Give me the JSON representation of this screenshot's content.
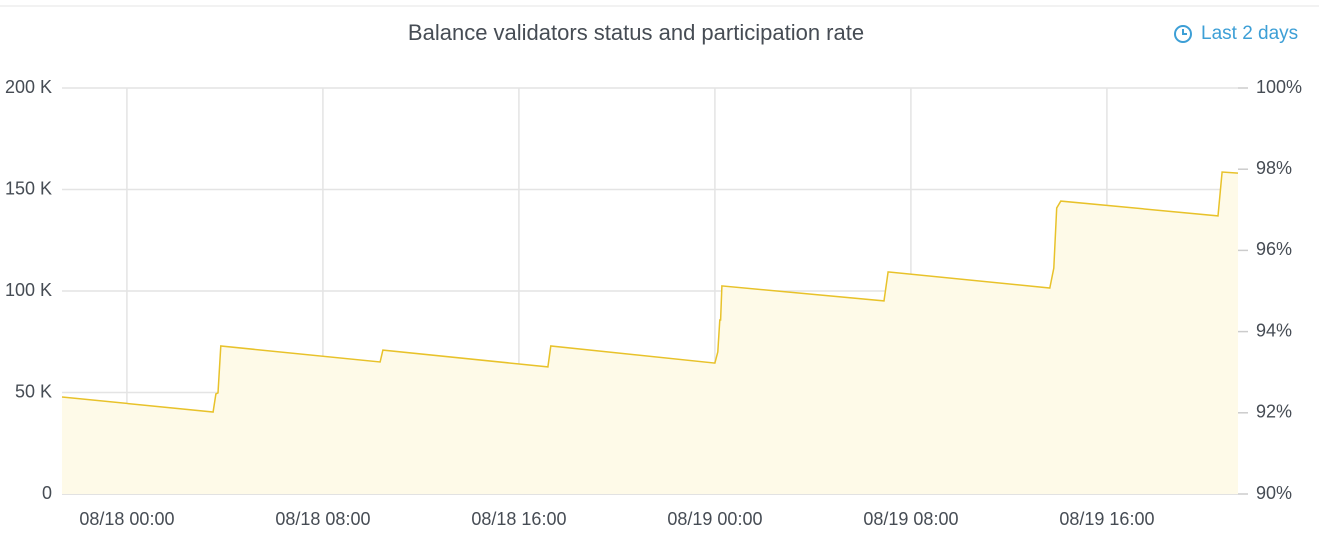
{
  "chart_data": {
    "type": "line",
    "title": "Balance validators status and participation rate",
    "time_range": "Last 2 days",
    "color": "#e8c22a",
    "fill": "#fefae8",
    "grid": true,
    "x": [
      "08/17 21:21",
      "08/18 03:31",
      "08/18 03:38",
      "08/18 03:43",
      "08/18 03:50",
      "08/18 10:20",
      "08/18 10:27",
      "08/18 17:11",
      "08/18 17:18",
      "08/19 00:00",
      "08/19 00:07",
      "08/19 00:12",
      "08/19 00:14",
      "08/19 00:17",
      "08/19 06:54",
      "08/19 07:04",
      "08/19 13:40",
      "08/19 13:50",
      "08/19 13:57",
      "08/19 14:07",
      "08/19 20:32",
      "08/19 20:42",
      "08/19 21:21"
    ],
    "values": [
      47800,
      40400,
      49300,
      49800,
      72900,
      65000,
      70900,
      62600,
      72900,
      64500,
      70000,
      85700,
      85700,
      102500,
      95100,
      109400,
      101500,
      111300,
      140900,
      144300,
      137000,
      158600,
      158100
    ],
    "xlim": [
      "08/17 21:21",
      "08/19 21:21"
    ],
    "xticks": [
      "08/18 00:00",
      "08/18 08:00",
      "08/18 16:00",
      "08/19 00:00",
      "08/19 08:00",
      "08/19 16:00"
    ],
    "ylim": [
      0,
      200000
    ],
    "yticks": [
      0,
      {
        "value": 50000,
        "label": "50 K"
      },
      {
        "value": 100000,
        "label": "100 K"
      },
      {
        "value": 150000,
        "label": "150 K"
      },
      {
        "value": 200000,
        "label": "200 K"
      }
    ],
    "y2lim": [
      90,
      100
    ],
    "y2ticks": [
      {
        "value": 90,
        "label": "90%"
      },
      {
        "value": 92,
        "label": "92%"
      },
      {
        "value": 94,
        "label": "94%"
      },
      {
        "value": 96,
        "label": "96%"
      },
      {
        "value": 98,
        "label": "98%"
      },
      {
        "value": 100,
        "label": "100%"
      }
    ]
  }
}
